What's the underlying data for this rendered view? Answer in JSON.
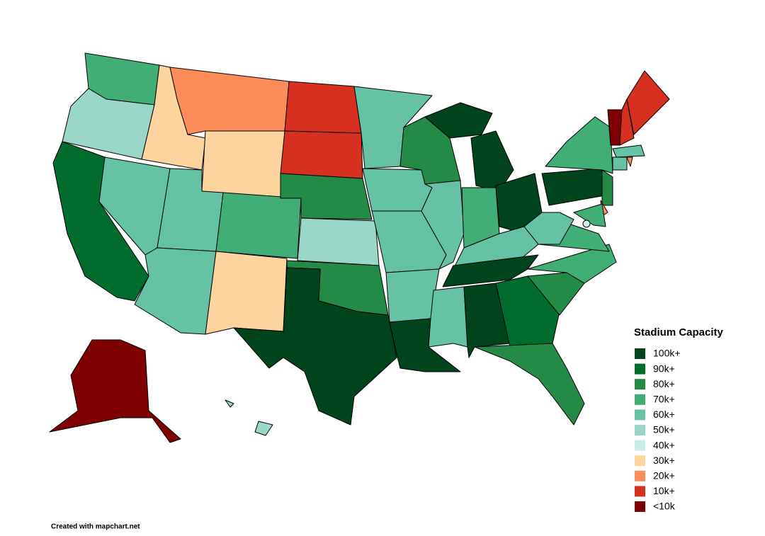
{
  "legend": {
    "title": "Stadium Capacity",
    "items": [
      {
        "label": "100k+",
        "color": "#00441b"
      },
      {
        "label": "90k+",
        "color": "#006d2c"
      },
      {
        "label": "80k+",
        "color": "#238b45"
      },
      {
        "label": "70k+",
        "color": "#41ae76"
      },
      {
        "label": "60k+",
        "color": "#66c2a4"
      },
      {
        "label": "50k+",
        "color": "#99d8c9"
      },
      {
        "label": "40k+",
        "color": "#ccece6"
      },
      {
        "label": "30k+",
        "color": "#fdd49e"
      },
      {
        "label": "20k+",
        "color": "#fc8d59"
      },
      {
        "label": "10k+",
        "color": "#d7301f"
      },
      {
        "label": "<10k",
        "color": "#7f0000"
      }
    ]
  },
  "map": {
    "regions": [
      3,
      5,
      1,
      7,
      4,
      8,
      7,
      4,
      4,
      3,
      7,
      9,
      9,
      2,
      5,
      2,
      0,
      4,
      4,
      4,
      4,
      0,
      2,
      4,
      0,
      0,
      3,
      0,
      4,
      0,
      4,
      0,
      1,
      2,
      2,
      3,
      3,
      4,
      0,
      3,
      2,
      8,
      3,
      10,
      9,
      9,
      4,
      4,
      8,
      10,
      5,
      5,
      6
    ]
  },
  "footer": "Created with mapchart.net"
}
